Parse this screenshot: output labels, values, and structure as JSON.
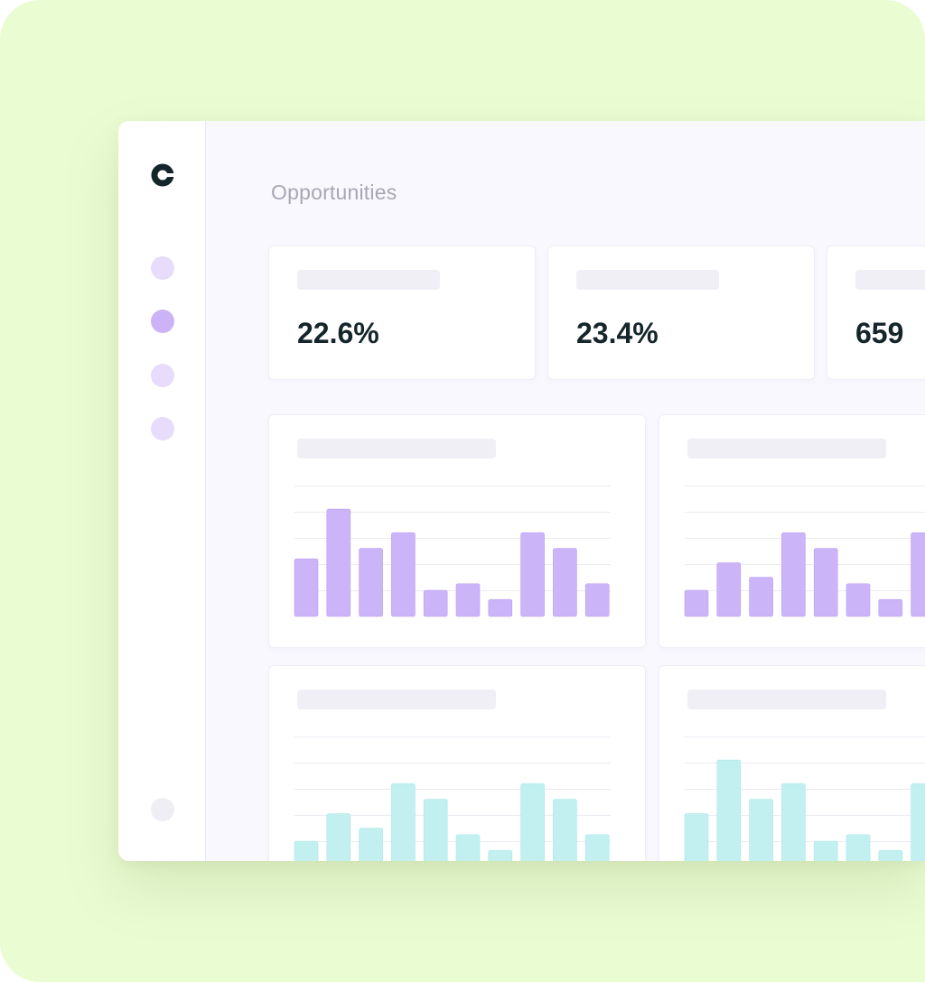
{
  "page": {
    "title": "Opportunities"
  },
  "sidebar": {
    "logo_icon": "brand-c-logo-icon",
    "items": [
      {
        "name": "nav-item-1",
        "state": "inactive"
      },
      {
        "name": "nav-item-2",
        "state": "active"
      },
      {
        "name": "nav-item-3",
        "state": "inactive"
      },
      {
        "name": "nav-item-4",
        "state": "inactive"
      }
    ],
    "bottom_item": "nav-item-bottom"
  },
  "stats": [
    {
      "value": "22.6%"
    },
    {
      "value": "23.4%"
    },
    {
      "value": "659"
    }
  ],
  "colors": {
    "backdrop": "#eafcd2",
    "purple_bar": "#cbb5f8",
    "purple_bar_edge": "#b99ef3",
    "cyan_bar": "#c2f0f0",
    "cyan_bar_edge": "#a9e7e8",
    "active_nav": "#ccb3f7",
    "inactive_nav": "#e7dcfb",
    "text_dark": "#14262a",
    "text_muted": "#a8a6b4"
  },
  "chart_data": [
    {
      "type": "bar",
      "color": "purple",
      "values": [
        2.2,
        4.1,
        2.6,
        3.2,
        1.0,
        1.25,
        0.65,
        3.2,
        2.6,
        1.25
      ],
      "ylim": [
        0,
        5
      ]
    },
    {
      "type": "bar",
      "color": "purple",
      "values": [
        1.0,
        2.05,
        1.5,
        3.2,
        2.6,
        1.25,
        0.65,
        3.2
      ],
      "ylim": [
        0,
        5
      ]
    },
    {
      "type": "bar",
      "color": "cyan",
      "values": [
        1.0,
        2.05,
        1.5,
        3.2,
        2.6,
        1.25,
        0.65,
        3.2,
        2.6,
        1.25
      ],
      "ylim": [
        0,
        5
      ]
    },
    {
      "type": "bar",
      "color": "cyan",
      "values": [
        2.05,
        4.1,
        2.6,
        3.2,
        1.0,
        1.25,
        0.65,
        3.2
      ],
      "ylim": [
        0,
        5
      ]
    }
  ]
}
